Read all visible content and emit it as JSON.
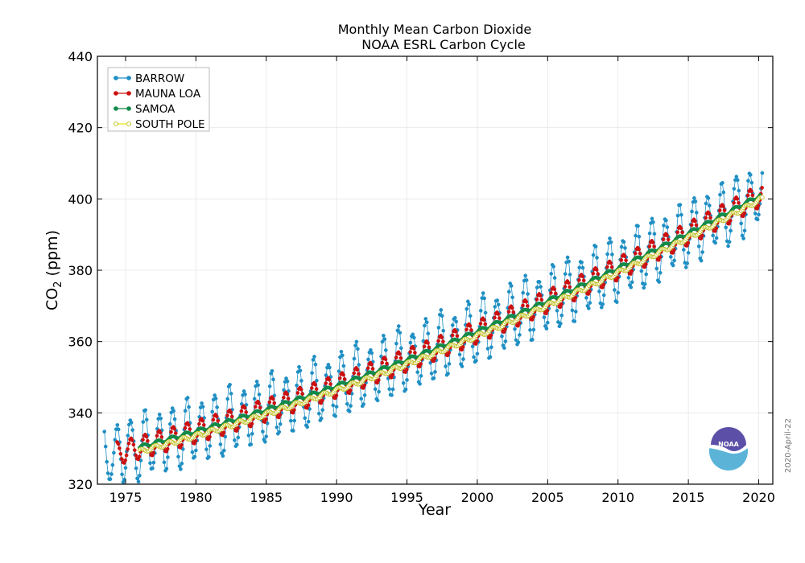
{
  "chart_data": {
    "type": "line",
    "title": "Monthly Mean Carbon Dioxide",
    "subtitle": "NOAA ESRL Carbon Cycle",
    "xlabel": "Year",
    "ylabel_main": "CO",
    "ylabel_sub": "2",
    "ylabel_unit": " (ppm)",
    "xlim": [
      1973,
      2021
    ],
    "ylim": [
      320,
      440
    ],
    "x_ticks": [
      "1975",
      "1980",
      "1985",
      "1990",
      "1995",
      "2000",
      "2005",
      "2010",
      "2015",
      "2020"
    ],
    "y_ticks": [
      "320",
      "340",
      "360",
      "380",
      "400",
      "420",
      "440"
    ],
    "grid": true,
    "legend_position": "top-left",
    "series": [
      {
        "name": "BARROW",
        "color": "#1f8fc4",
        "marker": "filled-circle",
        "start": 1973.5,
        "end": 2020.3,
        "base": 330.5,
        "amp": 8.5,
        "phase": 0.38
      },
      {
        "name": "MAUNA LOA",
        "color": "#cc1010",
        "marker": "filled-circle",
        "start": 1974.4,
        "end": 2020.3,
        "base": 330.3,
        "amp": 3.2,
        "phase": 0.38
      },
      {
        "name": "SAMOA",
        "color": "#128a4a",
        "marker": "filled-circle",
        "start": 1976.0,
        "end": 2020.1,
        "base": 330.4,
        "amp": 0.5,
        "phase": 0.3
      },
      {
        "name": "SOUTH POLE",
        "color": "#e6e612",
        "marker": "open-circle",
        "start": 1976.0,
        "end": 2020.3,
        "base": 329.2,
        "amp": 0.6,
        "phase": 0.1
      }
    ]
  },
  "logo": {
    "text": "NOAA",
    "color_dark": "#5b4fa8",
    "color_light": "#5bb4d8"
  },
  "date_stamp": "2020-April-22"
}
